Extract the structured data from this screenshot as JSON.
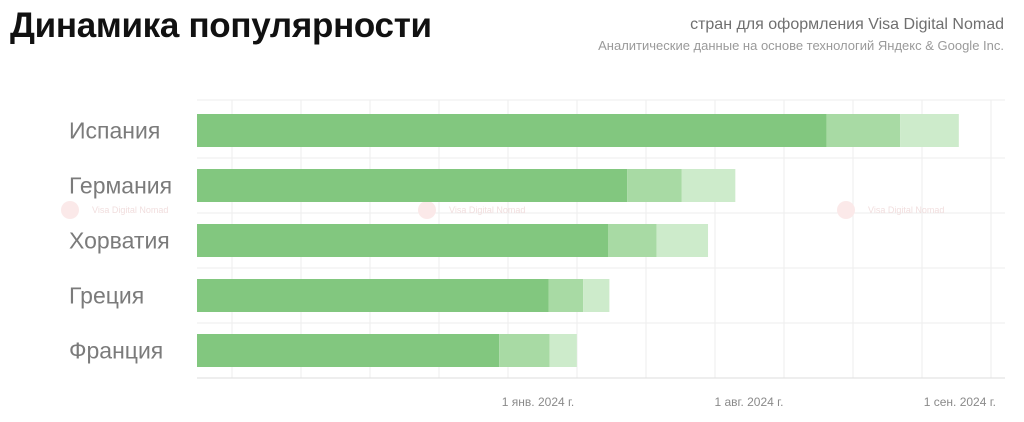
{
  "header": {
    "title": "Динамика популярности",
    "subtitle": "стран для оформления Visa Digital Nomad",
    "source": "Аналитические данные на основе технологий Яндекс & Google Inc."
  },
  "watermark": {
    "text": "Visa Digital Nomad"
  },
  "colors": {
    "dark": "#82c77f",
    "mid": "#a8daa4",
    "light": "#cdebcb",
    "grid": "#eeeeee",
    "axis": "#dddddd"
  },
  "chart_data": {
    "type": "bar",
    "orientation": "horizontal",
    "stacked": true,
    "categories": [
      "Испания",
      "Германия",
      "Хорватия",
      "Греция",
      "Франция"
    ],
    "series": [
      {
        "values": [
          600,
          410,
          392,
          335,
          288
        ]
      },
      {
        "values": [
          70,
          52,
          46,
          33,
          48
        ]
      },
      {
        "values": [
          56,
          51,
          49,
          25,
          26
        ]
      }
    ],
    "xlim": [
      0,
      770
    ],
    "x_ticks": [
      {
        "label": "1 янв. 2024 г.",
        "value": 325
      },
      {
        "label": "1 авг. 2024 г.",
        "value": 526
      },
      {
        "label": "1 сен. 2024 г.",
        "value": 727
      }
    ],
    "grid": true
  }
}
